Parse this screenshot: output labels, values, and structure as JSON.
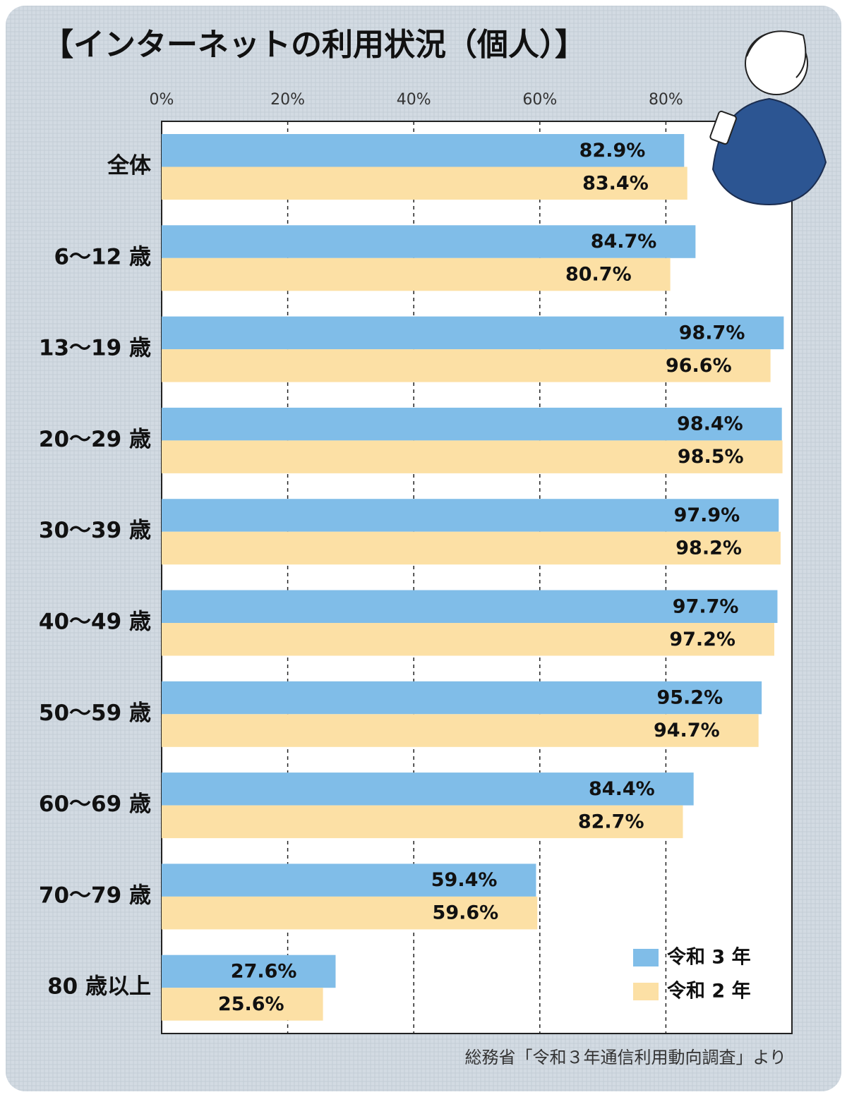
{
  "chart_data": {
    "type": "bar",
    "orientation": "horizontal",
    "title": "【インターネットの利用状況（個人）】",
    "source": "総務省「令和３年通信利用動向調査」より",
    "categories": [
      "全体",
      "6～12 歳",
      "13～19 歳",
      "20～29 歳",
      "30～39 歳",
      "40～49 歳",
      "50～59 歳",
      "60～69 歳",
      "70～79 歳",
      "80 歳以上"
    ],
    "series": [
      {
        "name": "令和 3 年",
        "color": "#80bde8",
        "values": [
          82.9,
          84.7,
          98.7,
          98.4,
          97.9,
          97.7,
          95.2,
          84.4,
          59.4,
          27.6
        ],
        "value_labels": [
          "82.9%",
          "84.7%",
          "98.7%",
          "98.4%",
          "97.9%",
          "97.7%",
          "95.2%",
          "84.4%",
          "59.4%",
          "27.6%"
        ]
      },
      {
        "name": "令和 2 年",
        "color": "#fce0a5",
        "values": [
          83.4,
          80.7,
          96.6,
          98.5,
          98.2,
          97.2,
          94.7,
          82.7,
          59.6,
          25.6
        ],
        "value_labels": [
          "83.4%",
          "80.7%",
          "96.6%",
          "98.5%",
          "98.2%",
          "97.2%",
          "94.7%",
          "82.7%",
          "59.6%",
          "25.6%"
        ]
      }
    ],
    "xlim": [
      0,
      100
    ],
    "xticks": [
      {
        "value": 0,
        "label": "0%"
      },
      {
        "value": 20,
        "label": "20%"
      },
      {
        "value": 40,
        "label": "40%"
      },
      {
        "value": 60,
        "label": "60%"
      },
      {
        "value": 80,
        "label": "80%"
      }
    ],
    "grid": true,
    "legend": "lower right"
  }
}
